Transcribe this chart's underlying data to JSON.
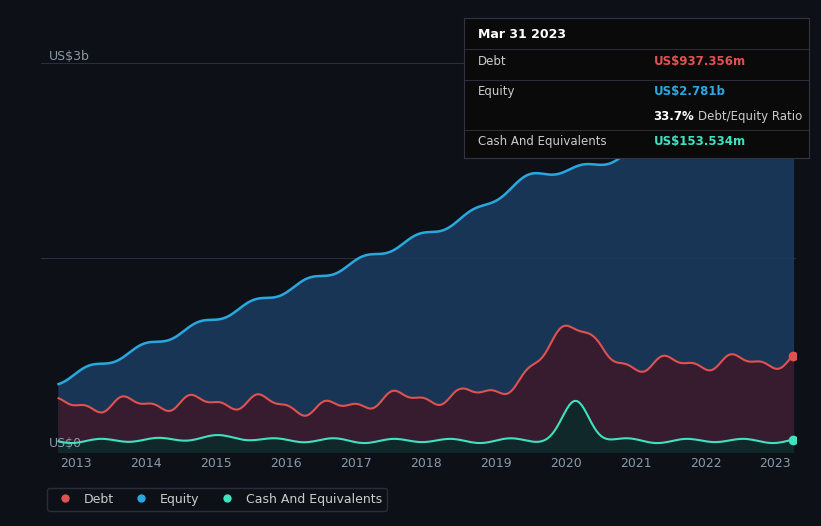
{
  "bg_color": "#0d1117",
  "plot_bg_color": "#0d1117",
  "ylabel_top": "US$3b",
  "ylabel_bottom": "US$0",
  "x_ticks": [
    2013,
    2014,
    2015,
    2016,
    2017,
    2018,
    2019,
    2020,
    2021,
    2022,
    2023
  ],
  "debt_color": "#e05252",
  "equity_color": "#29a8e0",
  "cash_color": "#40e0c0",
  "equity_fill_color": "#1a3a5c",
  "debt_fill_color": "#3a1a2a",
  "cash_fill_color": "#0d2a2a",
  "info_box": {
    "date": "Mar 31 2023",
    "debt_label": "Debt",
    "debt_value": "US$937.356m",
    "equity_label": "Equity",
    "equity_value": "US$2.781b",
    "ratio": "33.7%",
    "ratio_label": "Debt/Equity Ratio",
    "cash_label": "Cash And Equivalents",
    "cash_value": "US$153.534m"
  },
  "legend_items": [
    "Debt",
    "Equity",
    "Cash And Equivalents"
  ],
  "grid_color": "#2a3040",
  "axis_label_color": "#8899aa",
  "text_color": "#cccccc",
  "divider_color": "#333344",
  "ylim": [
    0,
    3.2
  ],
  "xlim": [
    2012.5,
    2023.3
  ]
}
